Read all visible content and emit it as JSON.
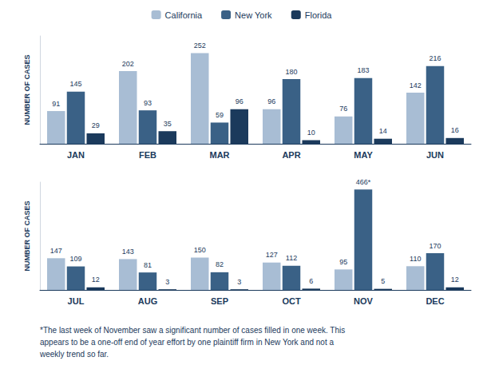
{
  "chart_data": [
    {
      "type": "bar",
      "categories": [
        "JAN",
        "FEB",
        "MAR",
        "APR",
        "MAY",
        "JUN"
      ],
      "series": [
        {
          "name": "California",
          "color": "#a8bdd4",
          "values": [
            91,
            202,
            252,
            96,
            76,
            142
          ]
        },
        {
          "name": "New York",
          "color": "#3a6186",
          "values": [
            145,
            93,
            59,
            180,
            183,
            216
          ]
        },
        {
          "name": "Florida",
          "color": "#1b3a5c",
          "values": [
            29,
            35,
            96,
            10,
            14,
            16
          ]
        }
      ],
      "ylabel": "NUMBER OF CASES",
      "ylim": [
        0,
        300
      ],
      "data_labels": true,
      "grid": false,
      "tick_labels": "x",
      "legend": "top"
    },
    {
      "type": "bar",
      "categories": [
        "JUL",
        "AUG",
        "SEP",
        "OCT",
        "NOV",
        "DEC"
      ],
      "series": [
        {
          "name": "California",
          "color": "#a8bdd4",
          "values": [
            147,
            143,
            150,
            127,
            95,
            110
          ]
        },
        {
          "name": "New York",
          "color": "#3a6186",
          "values": [
            109,
            81,
            82,
            112,
            466,
            170
          ],
          "value_labels": [
            "109",
            "81",
            "82",
            "112",
            "466*",
            "170"
          ]
        },
        {
          "name": "Florida",
          "color": "#1b3a5c",
          "values": [
            12,
            3,
            3,
            6,
            5,
            12
          ]
        }
      ],
      "ylabel": "NUMBER OF CASES",
      "ylim": [
        0,
        500
      ],
      "data_labels": true,
      "grid": false,
      "tick_labels": "x",
      "annotations": [
        "*The last week of November saw a significant number of cases filled in one week. This\nappears to be a one-off end of year effort by one plaintiff firm in New York and not a\nweekly trend so far."
      ]
    }
  ]
}
